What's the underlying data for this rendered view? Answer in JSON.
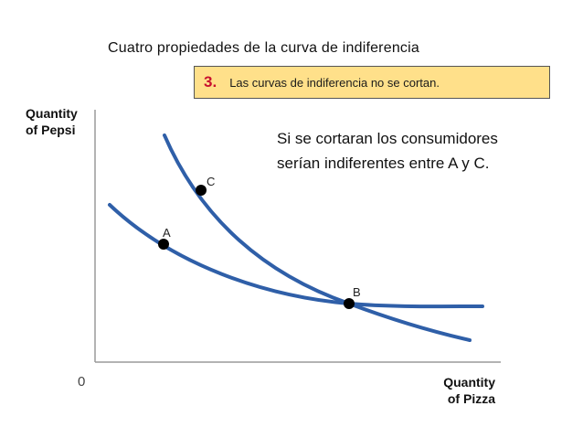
{
  "slide": {
    "title": "Cuatro propiedades de la curva de indiferencia"
  },
  "callout": {
    "number": "3.",
    "text": "Las curvas de indiferencia no se cortan."
  },
  "axes": {
    "y_title_line1": "Quantity",
    "y_title_line2": "of Pepsi",
    "x_title_line1": "Quantity",
    "x_title_line2": "of Pizza",
    "origin": "0"
  },
  "note": {
    "line1": "Si se cortaran los consumidores",
    "line2": "serían indiferentes entre A y C."
  },
  "points": {
    "a": "A",
    "b": "B",
    "c": "C"
  },
  "colors": {
    "curve": "#2f5fa8",
    "callout_bg": "#ffe08a",
    "callout_number": "#c8102e",
    "axis": "#9a9a9a"
  }
}
